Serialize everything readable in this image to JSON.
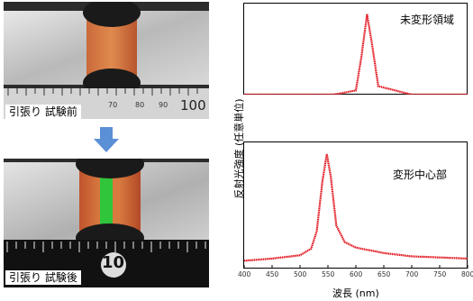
{
  "photos": {
    "before_caption": "引張り 試験前",
    "after_caption": "引張り 試験後",
    "ruler_before_numbers": [
      "70",
      "80",
      "90",
      "100"
    ],
    "ruler_after_number": "10"
  },
  "chart_data": [
    {
      "type": "line",
      "title": "",
      "panel_label": "未変形領域",
      "x": [
        400,
        560,
        600,
        610,
        620,
        630,
        640,
        700,
        800
      ],
      "y": [
        0.0,
        0.0,
        0.05,
        0.45,
        0.95,
        0.55,
        0.1,
        0.0,
        0.0
      ],
      "xlim": [
        400,
        800
      ]
    },
    {
      "type": "line",
      "title": "",
      "panel_label": "変形中心部",
      "x": [
        400,
        450,
        500,
        520,
        530,
        540,
        548,
        555,
        565,
        580,
        600,
        650,
        700,
        800
      ],
      "y": [
        0.03,
        0.05,
        0.08,
        0.14,
        0.3,
        0.75,
        1.0,
        0.8,
        0.35,
        0.2,
        0.15,
        0.1,
        0.07,
        0.05
      ],
      "xlabel": "波長 (nm)",
      "xticks": [
        "400",
        "450",
        "500",
        "550",
        "600",
        "650",
        "700",
        "750",
        "800"
      ],
      "xlim": [
        400,
        800
      ]
    }
  ],
  "shared_axis": {
    "ylabel": "反射光強度 (任意単位)"
  },
  "colors": {
    "curve": "#e0141e",
    "arrow": "#5b8fd6",
    "green_band": "#27c93a"
  }
}
